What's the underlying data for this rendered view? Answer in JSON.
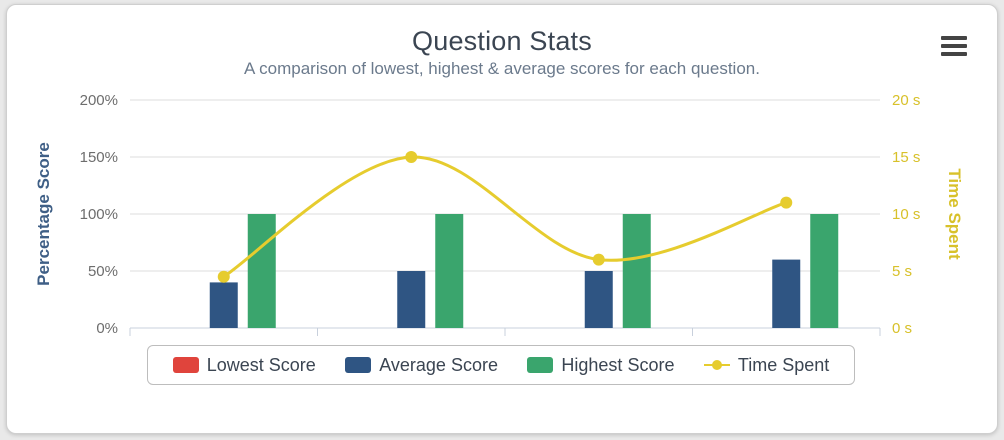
{
  "chart_data": {
    "type": "bar",
    "title": "Question Stats",
    "subtitle": "A comparison of lowest, highest & average scores for each question.",
    "categories": [
      "",
      "",
      "",
      ""
    ],
    "series": [
      {
        "name": "Lowest Score",
        "type": "bar",
        "axis": "left",
        "color": "#e0443c",
        "values": [
          0,
          0,
          0,
          0
        ]
      },
      {
        "name": "Average Score",
        "type": "bar",
        "axis": "left",
        "color": "#2f5583",
        "values": [
          40,
          50,
          50,
          60
        ]
      },
      {
        "name": "Highest Score",
        "type": "bar",
        "axis": "left",
        "color": "#3aa56d",
        "values": [
          100,
          100,
          100,
          100
        ]
      },
      {
        "name": "Time Spent",
        "type": "line",
        "axis": "right",
        "color": "#e6cc2e",
        "values": [
          4.5,
          15,
          6,
          11
        ]
      }
    ],
    "ylabel": "Percentage Score",
    "ylabel_color": "#3f5f86",
    "ylim": [
      0,
      200
    ],
    "yticks": [
      "0%",
      "50%",
      "100%",
      "150%",
      "200%"
    ],
    "y2label": "Time Spent",
    "y2label_color": "#d8c12a",
    "y2lim": [
      0,
      20
    ],
    "y2ticks": [
      "0 s",
      "5 s",
      "10 s",
      "15 s",
      "20 s"
    ],
    "grid": true,
    "legend_position": "bottom"
  },
  "menu_icon": "hamburger-menu-icon"
}
